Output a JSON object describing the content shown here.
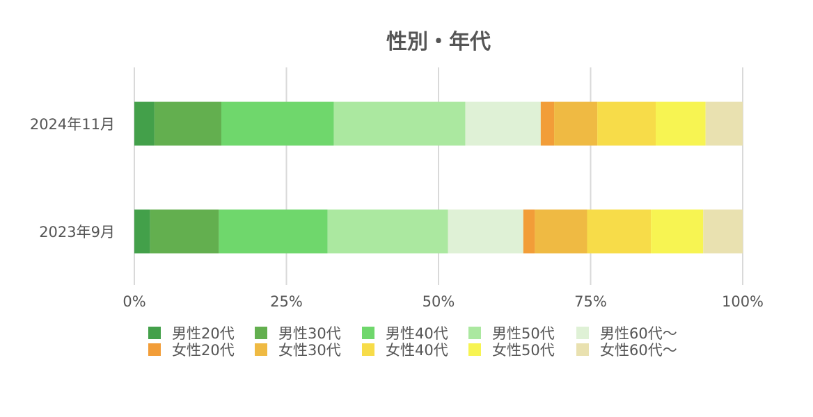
{
  "chart_data": {
    "type": "bar",
    "orientation": "horizontal",
    "stacked": true,
    "normalized_percent": true,
    "title": "性別・年代",
    "categories": [
      "2024年11月",
      "2023年9月"
    ],
    "xlim": [
      0,
      100
    ],
    "x_ticks": [
      "0%",
      "25%",
      "50%",
      "75%",
      "100%"
    ],
    "grid": true,
    "legend_position": "bottom",
    "series": [
      {
        "name": "男性20代",
        "color": "#43a04a",
        "values": [
          3.3,
          2.6
        ]
      },
      {
        "name": "男性30代",
        "color": "#63af4f",
        "values": [
          11.0,
          11.3
        ]
      },
      {
        "name": "男性40代",
        "color": "#6fd76c",
        "values": [
          18.5,
          17.9
        ]
      },
      {
        "name": "男性50代",
        "color": "#abe8a0",
        "values": [
          21.6,
          19.8
        ]
      },
      {
        "name": "男性60代〜",
        "color": "#dff1d6",
        "values": [
          12.4,
          12.4
        ]
      },
      {
        "name": "女性20代",
        "color": "#f29d38",
        "values": [
          2.2,
          1.9
        ]
      },
      {
        "name": "女性30代",
        "color": "#efba43",
        "values": [
          7.1,
          8.6
        ]
      },
      {
        "name": "女性40代",
        "color": "#f7dc49",
        "values": [
          9.6,
          10.5
        ]
      },
      {
        "name": "女性50代",
        "color": "#f7f452",
        "values": [
          8.2,
          8.6
        ]
      },
      {
        "name": "女性60代〜",
        "color": "#e9e1b0",
        "values": [
          6.1,
          6.5
        ]
      }
    ]
  }
}
